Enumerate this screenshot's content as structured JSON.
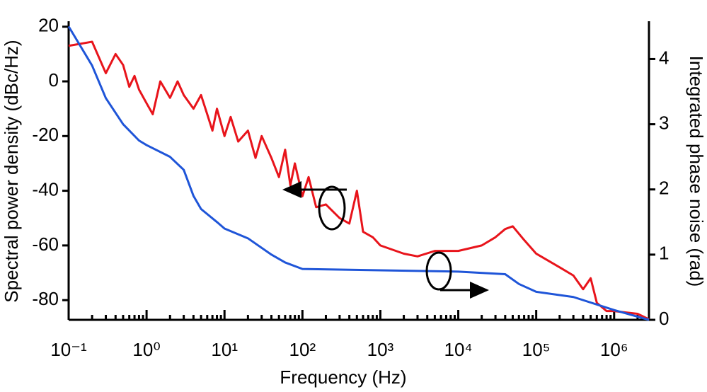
{
  "chart_data": {
    "type": "line",
    "xlabel": "Frequency (Hz)",
    "ylabel": "Spectral power density (dBc/Hz)",
    "y2label": "Integrated phase noise (rad)",
    "xscale": "log",
    "xlim": [
      0.1,
      2800000
    ],
    "ylim": [
      -87.2,
      22
    ],
    "y2lim": [
      0,
      4.58
    ],
    "xticks": [
      {
        "value": 0.1,
        "label": "10⁻¹"
      },
      {
        "value": 1,
        "label": "10⁰"
      },
      {
        "value": 10,
        "label": "10¹"
      },
      {
        "value": 100,
        "label": "10²"
      },
      {
        "value": 1000,
        "label": "10³"
      },
      {
        "value": 10000,
        "label": "10⁴"
      },
      {
        "value": 100000,
        "label": "10⁵"
      },
      {
        "value": 1000000,
        "label": "10⁶"
      }
    ],
    "yticks": [
      20,
      0,
      -20,
      -40,
      -60,
      -80
    ],
    "y2ticks": [
      4,
      3,
      2,
      1,
      0
    ],
    "series": [
      {
        "name": "Spectral power density",
        "color": "#e8141b",
        "axis": "y",
        "x": [
          0.1,
          0.2,
          0.3,
          0.4,
          0.5,
          0.6,
          0.7,
          0.8,
          1,
          1.2,
          1.5,
          2,
          2.5,
          3,
          4,
          5,
          6,
          7,
          8,
          10,
          12,
          15,
          20,
          25,
          30,
          40,
          50,
          60,
          70,
          80,
          100,
          120,
          150,
          200,
          300,
          400,
          500,
          600,
          800,
          1000,
          2000,
          3000,
          5000,
          10000,
          20000,
          30000,
          40000,
          50000,
          70000,
          100000,
          200000,
          300000,
          400000,
          500000,
          600000,
          800000,
          1000000,
          2000000,
          2800000
        ],
        "values": [
          13,
          14.5,
          3,
          10,
          6,
          -2,
          2,
          -3,
          -8,
          -12,
          0,
          -6,
          0,
          -5,
          -10,
          -5,
          -12,
          -18,
          -10,
          -20,
          -13,
          -22,
          -18,
          -28,
          -20,
          -28,
          -35,
          -25,
          -38,
          -30,
          -42,
          -35,
          -46,
          -45,
          -50,
          -52,
          -40,
          -55,
          -57,
          -60,
          -63,
          -64,
          -62,
          -62,
          -60,
          -57,
          -54,
          -53,
          -58,
          -63,
          -68,
          -71,
          -76,
          -72,
          -81,
          -84,
          -84,
          -85,
          -87
        ]
      },
      {
        "name": "Integrated phase noise",
        "color": "#1f55d8",
        "axis": "y2",
        "x": [
          0.1,
          0.2,
          0.3,
          0.5,
          0.8,
          1,
          2,
          3,
          4,
          5,
          8,
          10,
          20,
          40,
          60,
          100,
          1000,
          10000,
          40000,
          60000,
          100000,
          300000,
          1000000,
          2800000
        ],
        "values": [
          4.5,
          3.9,
          3.4,
          3.0,
          2.75,
          2.68,
          2.5,
          2.3,
          1.9,
          1.7,
          1.5,
          1.4,
          1.25,
          1.0,
          0.88,
          0.78,
          0.76,
          0.74,
          0.7,
          0.55,
          0.43,
          0.35,
          0.15,
          0
        ]
      }
    ]
  }
}
